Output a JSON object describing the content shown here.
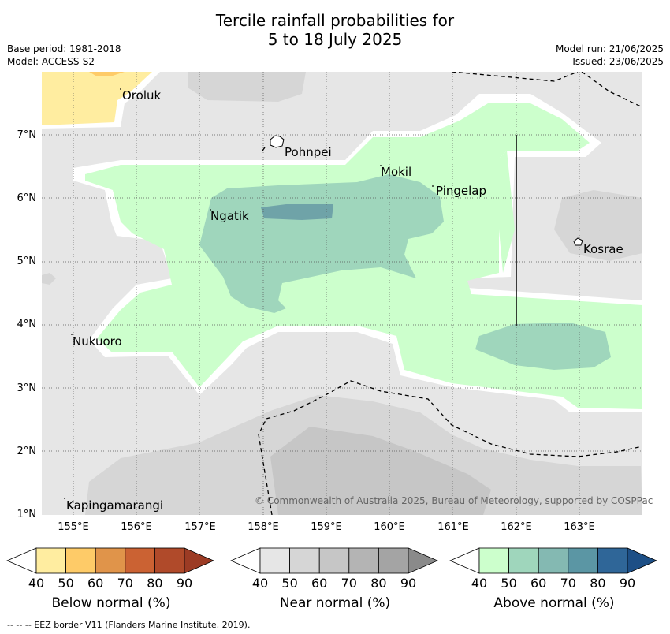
{
  "title": {
    "line1": "Tercile rainfall probabilities for",
    "line2": "5 to 18 July 2025"
  },
  "meta": {
    "base_period": "Base period: 1981-2018",
    "model": "Model: ACCESS-S2",
    "model_run": "Model run: 21/06/2025",
    "issued": "Issued: 23/06/2025"
  },
  "axes": {
    "latitudes": [
      "7°N",
      "6°N",
      "5°N",
      "4°N",
      "3°N",
      "2°N",
      "1°N"
    ],
    "longitudes": [
      "155°E",
      "156°E",
      "157°E",
      "158°E",
      "159°E",
      "160°E",
      "161°E",
      "162°E",
      "163°E"
    ]
  },
  "places": [
    "Oroluk",
    "Pohnpei",
    "Mokil",
    "Pingelap",
    "Ngatik",
    "Kosrae",
    "Nukuoro",
    "Kapingamarangi"
  ],
  "copyright": "© Commonwealth of Australia 2025, Bureau of Meteorology, supported by COSPPac",
  "colorbars": {
    "ticks": [
      "40",
      "50",
      "60",
      "70",
      "80",
      "90"
    ],
    "below": {
      "label": "Below normal (%)",
      "colors": [
        "#ffeda0",
        "#fecb68",
        "#e0944a",
        "#cb6233",
        "#b04a2a",
        "#9c3b24"
      ]
    },
    "near": {
      "label": "Near normal (%)",
      "colors": [
        "#e6e6e6",
        "#d6d6d6",
        "#c6c6c6",
        "#b4b4b4",
        "#a4a4a4",
        "#8a8a8a"
      ]
    },
    "above": {
      "label": "Above normal (%)",
      "colors": [
        "#ccffcc",
        "#9fd6bc",
        "#84b9b2",
        "#5b96a4",
        "#2f6698",
        "#1d4f86"
      ]
    }
  },
  "footer": "--  --  -- EEZ border V11 (Flanders Marine Institute, 2019)."
}
